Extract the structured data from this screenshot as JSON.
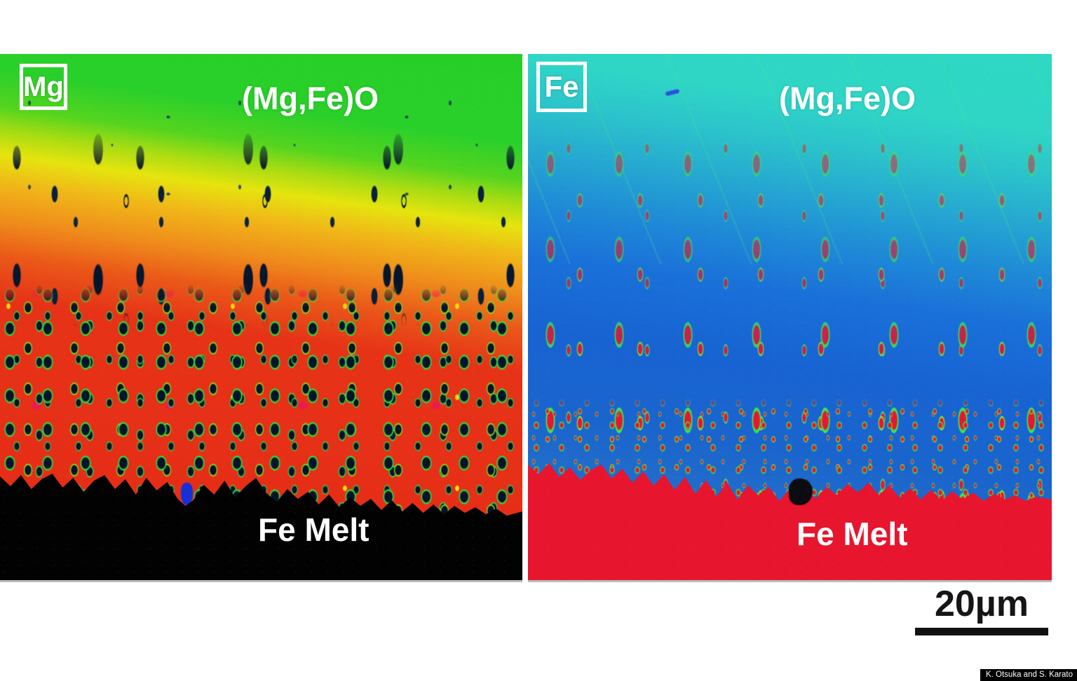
{
  "figure": {
    "background": "#ffffff",
    "panels": [
      {
        "id": "mg-map",
        "element_label": "Mg",
        "region_label": "(Mg,Fe)O",
        "melt_label": "Fe Melt",
        "palette": {
          "top_green": "#29d129",
          "band_yellow": "#e6e40f",
          "band_orange": "#f0821b",
          "band_red": "#e62b17",
          "inclusion_dark": "#05172e",
          "rim_green": "#36e23c",
          "accent_magenta": "#ee1758",
          "accent_yellow": "#ffe312",
          "melt": "#020202",
          "label_text": "#ffffff"
        }
      },
      {
        "id": "fe-map",
        "element_label": "Fe",
        "region_label": "(Mg,Fe)O",
        "melt_label": "Fe Melt",
        "palette": {
          "top_cyan": "#2ed8c3",
          "mid_blue": "#1a6ed8",
          "blob_red": "#e9142f",
          "rim_green": "#3fe650",
          "melt": "#e8152e",
          "inclusion_dark": "#0b0b12",
          "label_text": "#ffffff"
        }
      }
    ],
    "scale_bar": {
      "label": "20µm",
      "color": "#111111"
    },
    "credit": "K. Otsuka and S. Karato"
  }
}
